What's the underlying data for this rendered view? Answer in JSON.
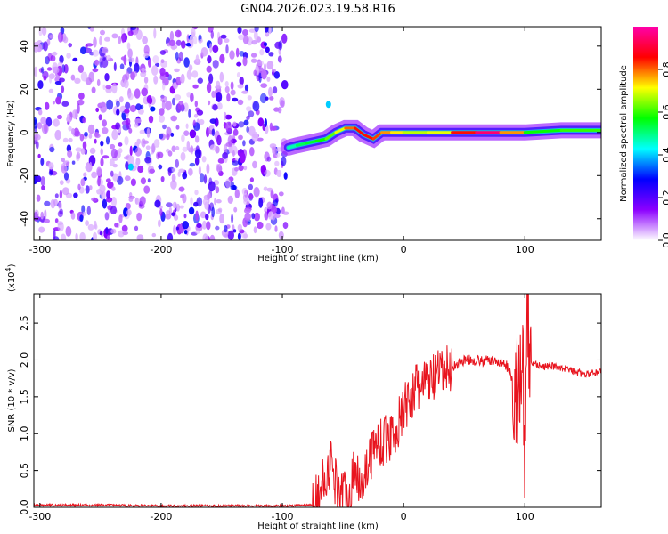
{
  "title": "GN04.2026.023.19.58.R16",
  "chart_data": [
    {
      "type": "heatmap",
      "xlabel": "Height of straight line (km)",
      "ylabel": "Frequency (Hz)",
      "xlim": [
        -305,
        163
      ],
      "ylim": [
        -50,
        49
      ],
      "xticks": [
        -300,
        -200,
        -100,
        0,
        100
      ],
      "xtick_labels": [
        "-300",
        "-200",
        "-100",
        "0",
        "100"
      ],
      "yticks": [
        -40,
        -20,
        0,
        20,
        40
      ],
      "ytick_labels": [
        "-40",
        "-20",
        "0",
        "20",
        "40"
      ],
      "colorbar": {
        "label": "Normalized spectral amplitude",
        "range": [
          0,
          1
        ],
        "ticks": [
          0.0,
          0.2,
          0.4,
          0.6,
          0.8
        ],
        "tick_labels": [
          "0.0",
          "0.2",
          "0.4",
          "0.6",
          "0.8"
        ],
        "colors": [
          "#ffffff",
          "#8c00ff",
          "#0000ff",
          "#00ffff",
          "#00ff00",
          "#ffff00",
          "#ff0000",
          "#ff00aa"
        ]
      },
      "noise_region_x": [
        -305,
        -97
      ],
      "signal_track": [
        {
          "x": -95,
          "y": -7,
          "a": 0.45
        },
        {
          "x": -88,
          "y": -6,
          "a": 0.5
        },
        {
          "x": -80,
          "y": -5,
          "a": 0.55
        },
        {
          "x": -72,
          "y": -4,
          "a": 0.55
        },
        {
          "x": -64,
          "y": -3,
          "a": 0.6
        },
        {
          "x": -56,
          "y": 0,
          "a": 0.65
        },
        {
          "x": -48,
          "y": 2,
          "a": 0.75
        },
        {
          "x": -40,
          "y": 2,
          "a": 0.85
        },
        {
          "x": -33,
          "y": -1,
          "a": 0.85
        },
        {
          "x": -25,
          "y": -3,
          "a": 0.85
        },
        {
          "x": -18,
          "y": 0,
          "a": 0.8
        },
        {
          "x": -10,
          "y": 0,
          "a": 0.75
        },
        {
          "x": 0,
          "y": 0,
          "a": 0.7
        },
        {
          "x": 20,
          "y": 0,
          "a": 0.65
        },
        {
          "x": 40,
          "y": 0,
          "a": 0.75
        },
        {
          "x": 60,
          "y": 0,
          "a": 0.95
        },
        {
          "x": 80,
          "y": 0,
          "a": 0.95
        },
        {
          "x": 100,
          "y": 0,
          "a": 0.6
        },
        {
          "x": 130,
          "y": 1,
          "a": 0.55
        },
        {
          "x": 163,
          "y": 1,
          "a": 0.65
        }
      ],
      "spurs": [
        {
          "x": -62,
          "y": 13,
          "a": 0.4
        },
        {
          "x": -225,
          "y": -16,
          "a": 0.4
        }
      ]
    },
    {
      "type": "line",
      "xlabel": "Height of straight line (km)",
      "ylabel": "SNR (10 * v/v)",
      "y_multiplier_label": "(x10",
      "y_multiplier_exponent": "4",
      "xlim": [
        -305,
        163
      ],
      "ylim": [
        0,
        2.9
      ],
      "xticks": [
        -300,
        -200,
        -100,
        0,
        100
      ],
      "xtick_labels": [
        "-300",
        "-200",
        "-100",
        "0",
        "100"
      ],
      "yticks": [
        0.0,
        0.5,
        1.0,
        1.5,
        2.0,
        2.5
      ],
      "ytick_labels": [
        "0.0",
        "0.5",
        "1.0",
        "1.5",
        "2.0",
        "2.5"
      ],
      "color": "#e8141e",
      "series": [
        {
          "x": [
            -305,
            -250,
            -200,
            -150,
            -100,
            -75,
            -70,
            -65,
            -60,
            -55,
            -50,
            -45,
            -40,
            -35,
            -30,
            -25,
            -20,
            -15,
            -10,
            -5,
            0,
            5,
            10,
            15,
            20,
            25,
            30,
            35,
            40,
            45,
            50,
            55,
            60,
            65,
            70,
            75,
            80,
            85,
            90,
            95,
            98,
            100,
            102,
            105,
            110,
            115,
            120,
            130,
            140,
            150,
            163
          ],
          "y": [
            0.03,
            0.03,
            0.02,
            0.02,
            0.02,
            0.03,
            0.15,
            0.4,
            0.6,
            0.3,
            0.2,
            0.15,
            0.5,
            0.35,
            0.55,
            0.8,
            0.9,
            0.9,
            1.0,
            1.1,
            1.3,
            1.5,
            1.6,
            1.65,
            1.7,
            1.75,
            1.8,
            1.85,
            1.9,
            1.95,
            2.0,
            2.0,
            2.0,
            1.98,
            2.0,
            1.98,
            1.97,
            1.92,
            1.75,
            1.5,
            2.2,
            0.3,
            2.5,
            1.95,
            1.95,
            1.9,
            1.92,
            1.9,
            1.85,
            1.8,
            1.85
          ]
        }
      ]
    }
  ]
}
